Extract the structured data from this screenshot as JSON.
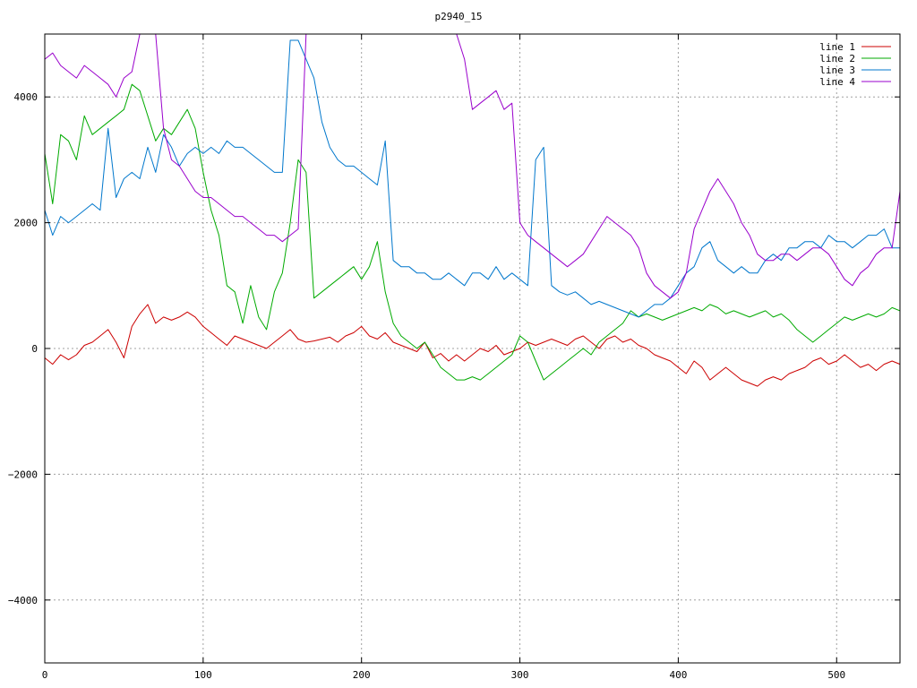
{
  "chart_data": {
    "type": "line",
    "title": "p2940_15",
    "xlabel": "",
    "ylabel": "",
    "xlim": [
      0,
      540
    ],
    "ylim": [
      -5000,
      5000
    ],
    "xticks": [
      0,
      100,
      200,
      300,
      400,
      500
    ],
    "yticks": [
      -4000,
      -2000,
      0,
      2000,
      4000
    ],
    "ytick_labels": [
      "−4000",
      "−2000",
      "0",
      "2000",
      "4000"
    ],
    "grid": true,
    "legend_position": "top-right",
    "series": [
      {
        "name": "line 1",
        "color": "#cc0000",
        "x": [
          0,
          5,
          10,
          15,
          20,
          25,
          30,
          35,
          40,
          45,
          50,
          55,
          60,
          65,
          70,
          75,
          80,
          85,
          90,
          95,
          100,
          105,
          110,
          115,
          120,
          125,
          130,
          135,
          140,
          145,
          150,
          155,
          160,
          165,
          170,
          175,
          180,
          185,
          190,
          195,
          200,
          205,
          210,
          215,
          220,
          225,
          230,
          235,
          240,
          245,
          250,
          255,
          260,
          265,
          270,
          275,
          280,
          285,
          290,
          295,
          300,
          305,
          310,
          315,
          320,
          325,
          330,
          335,
          340,
          345,
          350,
          355,
          360,
          365,
          370,
          375,
          380,
          385,
          390,
          395,
          400,
          405,
          410,
          415,
          420,
          425,
          430,
          435,
          440,
          445,
          450,
          455,
          460,
          465,
          470,
          475,
          480,
          485,
          490,
          495,
          500,
          505,
          510,
          515,
          520,
          525,
          530,
          535,
          540
        ],
        "y": [
          -150,
          -250,
          -100,
          -180,
          -100,
          50,
          100,
          200,
          300,
          100,
          -150,
          350,
          550,
          700,
          400,
          500,
          450,
          500,
          580,
          500,
          350,
          250,
          150,
          50,
          200,
          150,
          100,
          50,
          0,
          100,
          200,
          300,
          150,
          100,
          120,
          150,
          180,
          100,
          200,
          250,
          350,
          200,
          150,
          250,
          100,
          50,
          0,
          -50,
          100,
          -150,
          -80,
          -200,
          -100,
          -200,
          -100,
          0,
          -50,
          50,
          -100,
          -50,
          0,
          100,
          50,
          100,
          150,
          100,
          50,
          150,
          200,
          100,
          0,
          150,
          200,
          100,
          150,
          50,
          0,
          -100,
          -150,
          -200,
          -300,
          -400,
          -200,
          -300,
          -500,
          -400,
          -300,
          -400,
          -500,
          -550,
          -600,
          -500,
          -450,
          -500,
          -400,
          -350,
          -300,
          -200,
          -150,
          -250,
          -200,
          -100,
          -200,
          -300,
          -250,
          -350,
          -250,
          -200,
          -250
        ]
      },
      {
        "name": "line 2",
        "color": "#00aa00",
        "x": [
          0,
          5,
          10,
          15,
          20,
          25,
          30,
          35,
          40,
          45,
          50,
          55,
          60,
          65,
          70,
          75,
          80,
          85,
          90,
          95,
          100,
          105,
          110,
          115,
          120,
          125,
          130,
          135,
          140,
          145,
          150,
          155,
          160,
          165,
          170,
          175,
          180,
          185,
          190,
          195,
          200,
          205,
          210,
          215,
          220,
          225,
          230,
          235,
          240,
          245,
          250,
          255,
          260,
          265,
          270,
          275,
          280,
          285,
          290,
          295,
          300,
          305,
          310,
          315,
          320,
          325,
          330,
          335,
          340,
          345,
          350,
          355,
          360,
          365,
          370,
          375,
          380,
          385,
          390,
          395,
          400,
          405,
          410,
          415,
          420,
          425,
          430,
          435,
          440,
          445,
          450,
          455,
          460,
          465,
          470,
          475,
          480,
          485,
          490,
          495,
          500,
          505,
          510,
          515,
          520,
          525,
          530,
          535,
          540
        ],
        "y": [
          3100,
          2300,
          3400,
          3300,
          3000,
          3700,
          3400,
          3500,
          3600,
          3700,
          3800,
          4200,
          4100,
          3700,
          3300,
          3500,
          3400,
          3600,
          3800,
          3500,
          2800,
          2200,
          1800,
          1000,
          900,
          400,
          1000,
          500,
          300,
          900,
          1200,
          2000,
          3000,
          2800,
          800,
          900,
          1000,
          1100,
          1200,
          1300,
          1100,
          1300,
          1700,
          900,
          400,
          200,
          100,
          0,
          100,
          -100,
          -300,
          -400,
          -500,
          -500,
          -450,
          -500,
          -400,
          -300,
          -200,
          -100,
          200,
          100,
          -200,
          -500,
          -400,
          -300,
          -200,
          -100,
          0,
          -100,
          100,
          200,
          300,
          400,
          600,
          500,
          550,
          500,
          450,
          500,
          550,
          600,
          650,
          600,
          700,
          650,
          550,
          600,
          550,
          500,
          550,
          600,
          500,
          550,
          450,
          300,
          200,
          100,
          200,
          300,
          400,
          500,
          450,
          500,
          550,
          500,
          550,
          650,
          600
        ]
      },
      {
        "name": "line 3",
        "color": "#0077cc",
        "x": [
          0,
          5,
          10,
          15,
          20,
          25,
          30,
          35,
          40,
          45,
          50,
          55,
          60,
          65,
          70,
          75,
          80,
          85,
          90,
          95,
          100,
          105,
          110,
          115,
          120,
          125,
          130,
          135,
          140,
          145,
          150,
          155,
          160,
          165,
          170,
          175,
          180,
          185,
          190,
          195,
          200,
          205,
          210,
          215,
          220,
          225,
          230,
          235,
          240,
          245,
          250,
          255,
          260,
          265,
          270,
          275,
          280,
          285,
          290,
          295,
          300,
          305,
          310,
          315,
          320,
          325,
          330,
          335,
          340,
          345,
          350,
          355,
          360,
          365,
          370,
          375,
          380,
          385,
          390,
          395,
          400,
          405,
          410,
          415,
          420,
          425,
          430,
          435,
          440,
          445,
          450,
          455,
          460,
          465,
          470,
          475,
          480,
          485,
          490,
          495,
          500,
          505,
          510,
          515,
          520,
          525,
          530,
          535,
          540
        ],
        "y": [
          2200,
          1800,
          2100,
          2000,
          2100,
          2200,
          2300,
          2200,
          3500,
          2400,
          2700,
          2800,
          2700,
          3200,
          2800,
          3400,
          3200,
          2900,
          3100,
          3200,
          3100,
          3200,
          3100,
          3300,
          3200,
          3200,
          3100,
          3000,
          2900,
          2800,
          2800,
          4900,
          4900,
          4600,
          4300,
          3600,
          3200,
          3000,
          2900,
          2900,
          2800,
          2700,
          2600,
          3300,
          1400,
          1300,
          1300,
          1200,
          1200,
          1100,
          1100,
          1200,
          1100,
          1000,
          1200,
          1200,
          1100,
          1300,
          1100,
          1200,
          1100,
          1000,
          3000,
          3200,
          1000,
          900,
          850,
          900,
          800,
          700,
          750,
          700,
          650,
          600,
          550,
          500,
          600,
          700,
          700,
          800,
          1000,
          1200,
          1300,
          1600,
          1700,
          1400,
          1300,
          1200,
          1300,
          1200,
          1200,
          1400,
          1500,
          1400,
          1600,
          1600,
          1700,
          1700,
          1600,
          1800,
          1700,
          1700,
          1600,
          1700,
          1800,
          1800,
          1900,
          1600,
          1600
        ]
      },
      {
        "name": "line 4",
        "color": "#9900cc",
        "x": [
          0,
          5,
          10,
          15,
          20,
          25,
          30,
          35,
          40,
          45,
          50,
          55,
          60,
          65,
          70,
          75,
          80,
          85,
          90,
          95,
          100,
          105,
          110,
          115,
          120,
          125,
          130,
          135,
          140,
          145,
          150,
          155,
          160,
          165,
          170,
          175,
          180,
          185,
          190,
          195,
          200,
          205,
          210,
          215,
          220,
          225,
          230,
          235,
          240,
          245,
          250,
          255,
          260,
          265,
          270,
          275,
          280,
          285,
          290,
          295,
          300,
          305,
          310,
          315,
          320,
          325,
          330,
          335,
          340,
          345,
          350,
          355,
          360,
          365,
          370,
          375,
          380,
          385,
          390,
          395,
          400,
          405,
          410,
          415,
          420,
          425,
          430,
          435,
          440,
          445,
          450,
          455,
          460,
          465,
          470,
          475,
          480,
          485,
          490,
          495,
          500,
          505,
          510,
          515,
          520,
          525,
          530,
          535,
          540
        ],
        "y": [
          4600,
          4700,
          4500,
          4400,
          4300,
          4500,
          4400,
          4300,
          4200,
          4000,
          4300,
          4400,
          5000,
          5000,
          5000,
          3500,
          3000,
          2900,
          2700,
          2500,
          2400,
          2400,
          2300,
          2200,
          2100,
          2100,
          2000,
          1900,
          1800,
          1800,
          1700,
          1800,
          1900,
          5000,
          5000,
          5000,
          5000,
          5000,
          5000,
          5000,
          5000,
          5000,
          5000,
          5000,
          5000,
          5000,
          5000,
          5000,
          5000,
          5000,
          5000,
          5000,
          5000,
          4600,
          3800,
          3900,
          4000,
          4100,
          3800,
          3900,
          2000,
          1800,
          1700,
          1600,
          1500,
          1400,
          1300,
          1400,
          1500,
          1700,
          1900,
          2100,
          2000,
          1900,
          1800,
          1600,
          1200,
          1000,
          900,
          800,
          900,
          1200,
          1900,
          2200,
          2500,
          2700,
          2500,
          2300,
          2000,
          1800,
          1500,
          1400,
          1400,
          1500,
          1500,
          1400,
          1500,
          1600,
          1600,
          1500,
          1300,
          1100,
          1000,
          1200,
          1300,
          1500,
          1600,
          1600,
          2500
        ]
      }
    ]
  }
}
